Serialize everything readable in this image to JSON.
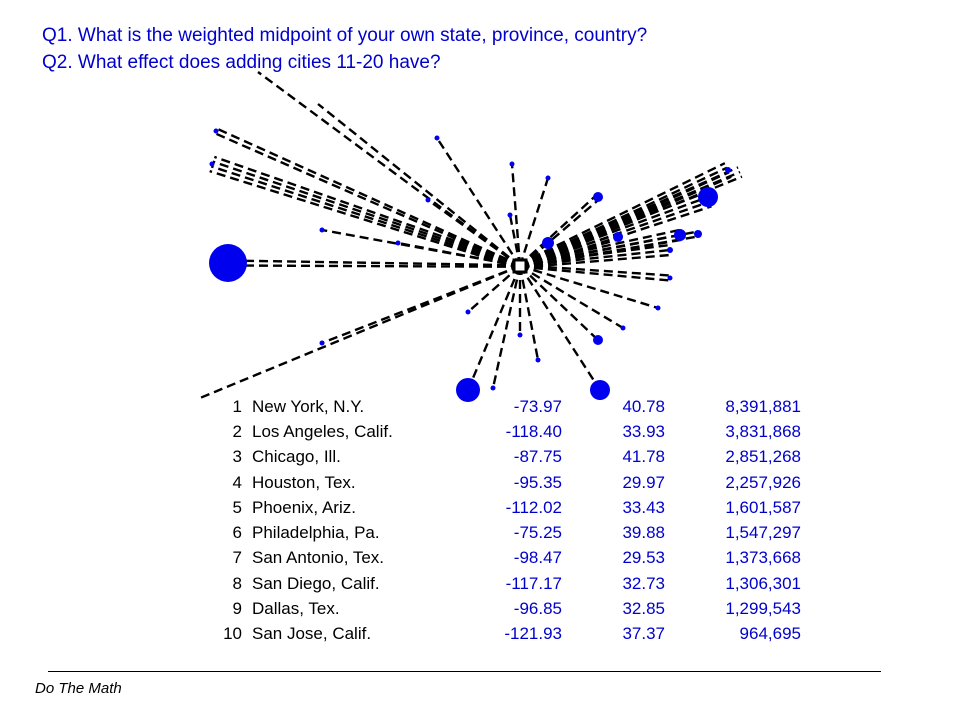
{
  "slide": {
    "question1": "Q1. What is the weighted midpoint of your own state, province, country?",
    "question2": "Q2. What effect does adding cities 11-20 have?",
    "footer": "Do The Math"
  },
  "colors": {
    "text_blue": "#0000cc",
    "dot_blue": "#0000ee",
    "line": "#000000"
  },
  "diagram": {
    "description_free": true,
    "center": "weighted-midpoint",
    "points_count": 28
  },
  "cities": [
    {
      "rank": "1",
      "name": "New York, N.Y.",
      "lon": "-73.97",
      "lat": "40.78",
      "pop": "8,391,881"
    },
    {
      "rank": "2",
      "name": "Los Angeles, Calif.",
      "lon": "-118.40",
      "lat": "33.93",
      "pop": "3,831,868"
    },
    {
      "rank": "3",
      "name": "Chicago, Ill.",
      "lon": "-87.75",
      "lat": "41.78",
      "pop": "2,851,268"
    },
    {
      "rank": "4",
      "name": "Houston, Tex.",
      "lon": "-95.35",
      "lat": "29.97",
      "pop": "2,257,926"
    },
    {
      "rank": "5",
      "name": "Phoenix, Ariz.",
      "lon": "-112.02",
      "lat": "33.43",
      "pop": "1,601,587"
    },
    {
      "rank": "6",
      "name": "Philadelphia, Pa.",
      "lon": "-75.25",
      "lat": "39.88",
      "pop": "1,547,297"
    },
    {
      "rank": "7",
      "name": "San Antonio, Tex.",
      "lon": "-98.47",
      "lat": "29.53",
      "pop": "1,373,668"
    },
    {
      "rank": "8",
      "name": "San Diego, Calif.",
      "lon": "-117.17",
      "lat": "32.73",
      "pop": "1,306,301"
    },
    {
      "rank": "9",
      "name": "Dallas, Tex.",
      "lon": "-96.85",
      "lat": "32.85",
      "pop": "1,299,543"
    },
    {
      "rank": "10",
      "name": "San Jose, Calif.",
      "lon": "-121.93",
      "lat": "37.37",
      "pop": "964,695"
    }
  ]
}
